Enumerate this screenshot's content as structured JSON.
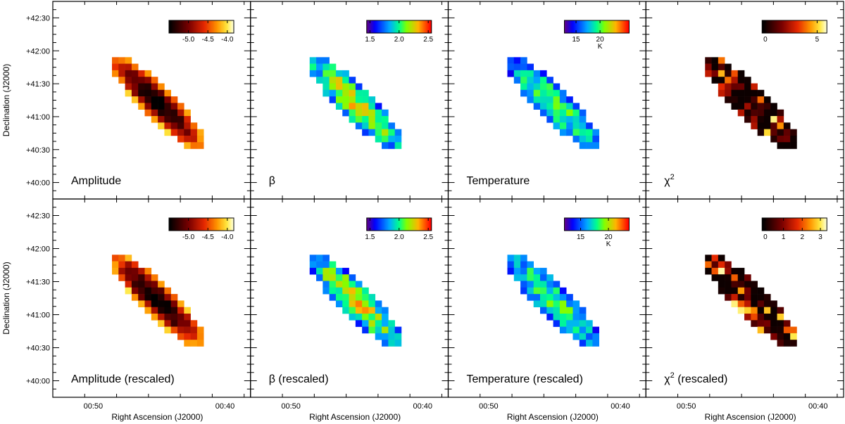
{
  "chart_data": {
    "type": "heatmap",
    "xlabel": "Right Ascension (J2000)",
    "ylabel": "Declination (J2000)",
    "x_ticks": [
      "00:50",
      "00:40"
    ],
    "y_ticks": [
      "+42:30",
      "+42:00",
      "+41:30",
      "+41:00",
      "+40:30",
      "+40:00"
    ],
    "panels": [
      {
        "label": "Amplitude",
        "sup": "",
        "colormap": "heat",
        "colorbar": {
          "ticks": [
            "-5.0",
            "-4.5",
            "-4.0"
          ],
          "tick_pos": [
            0.3,
            0.6,
            0.9
          ],
          "unit": ""
        },
        "range": [
          -5.5,
          -3.9
        ]
      },
      {
        "label": "β",
        "sup": "",
        "colormap": "jet",
        "colorbar": {
          "ticks": [
            "1.5",
            "2.0",
            "2.5"
          ],
          "tick_pos": [
            0.05,
            0.5,
            0.95
          ],
          "unit": ""
        },
        "range": [
          1.45,
          2.55
        ]
      },
      {
        "label": "Temperature",
        "sup": "",
        "colormap": "jet",
        "colorbar": {
          "ticks": [
            "15",
            "20"
          ],
          "tick_pos": [
            0.18,
            0.55
          ],
          "unit": "K"
        },
        "range": [
          13,
          26
        ]
      },
      {
        "label": "χ",
        "sup": "2",
        "colormap": "hot",
        "colorbar": {
          "ticks": [
            "0",
            "5"
          ],
          "tick_pos": [
            0.05,
            0.85
          ],
          "unit": ""
        },
        "range": [
          0,
          6.2
        ]
      },
      {
        "label": "Amplitude (rescaled)",
        "sup": "",
        "colormap": "heat",
        "colorbar": {
          "ticks": [
            "-5.0",
            "-4.5",
            "-4.0"
          ],
          "tick_pos": [
            0.3,
            0.6,
            0.9
          ],
          "unit": ""
        },
        "range": [
          -5.5,
          -3.9
        ]
      },
      {
        "label": "β (rescaled)",
        "sup": "",
        "colormap": "jet",
        "colorbar": {
          "ticks": [
            "1.5",
            "2.0",
            "2.5"
          ],
          "tick_pos": [
            0.05,
            0.5,
            0.95
          ],
          "unit": ""
        },
        "range": [
          1.45,
          2.55
        ]
      },
      {
        "label": "Temperature (rescaled)",
        "sup": "",
        "colormap": "jet",
        "colorbar": {
          "ticks": [
            "15",
            "20"
          ],
          "tick_pos": [
            0.25,
            0.68
          ],
          "unit": "K"
        },
        "range": [
          12,
          24
        ]
      },
      {
        "label": "χ",
        "sup": "2",
        "suffix": " (rescaled)",
        "colormap": "hot",
        "colorbar": {
          "ticks": [
            "0",
            "1",
            "2",
            "3"
          ],
          "tick_pos": [
            0.05,
            0.33,
            0.62,
            0.9
          ],
          "unit": ""
        },
        "range": [
          0,
          3.2
        ]
      }
    ]
  }
}
